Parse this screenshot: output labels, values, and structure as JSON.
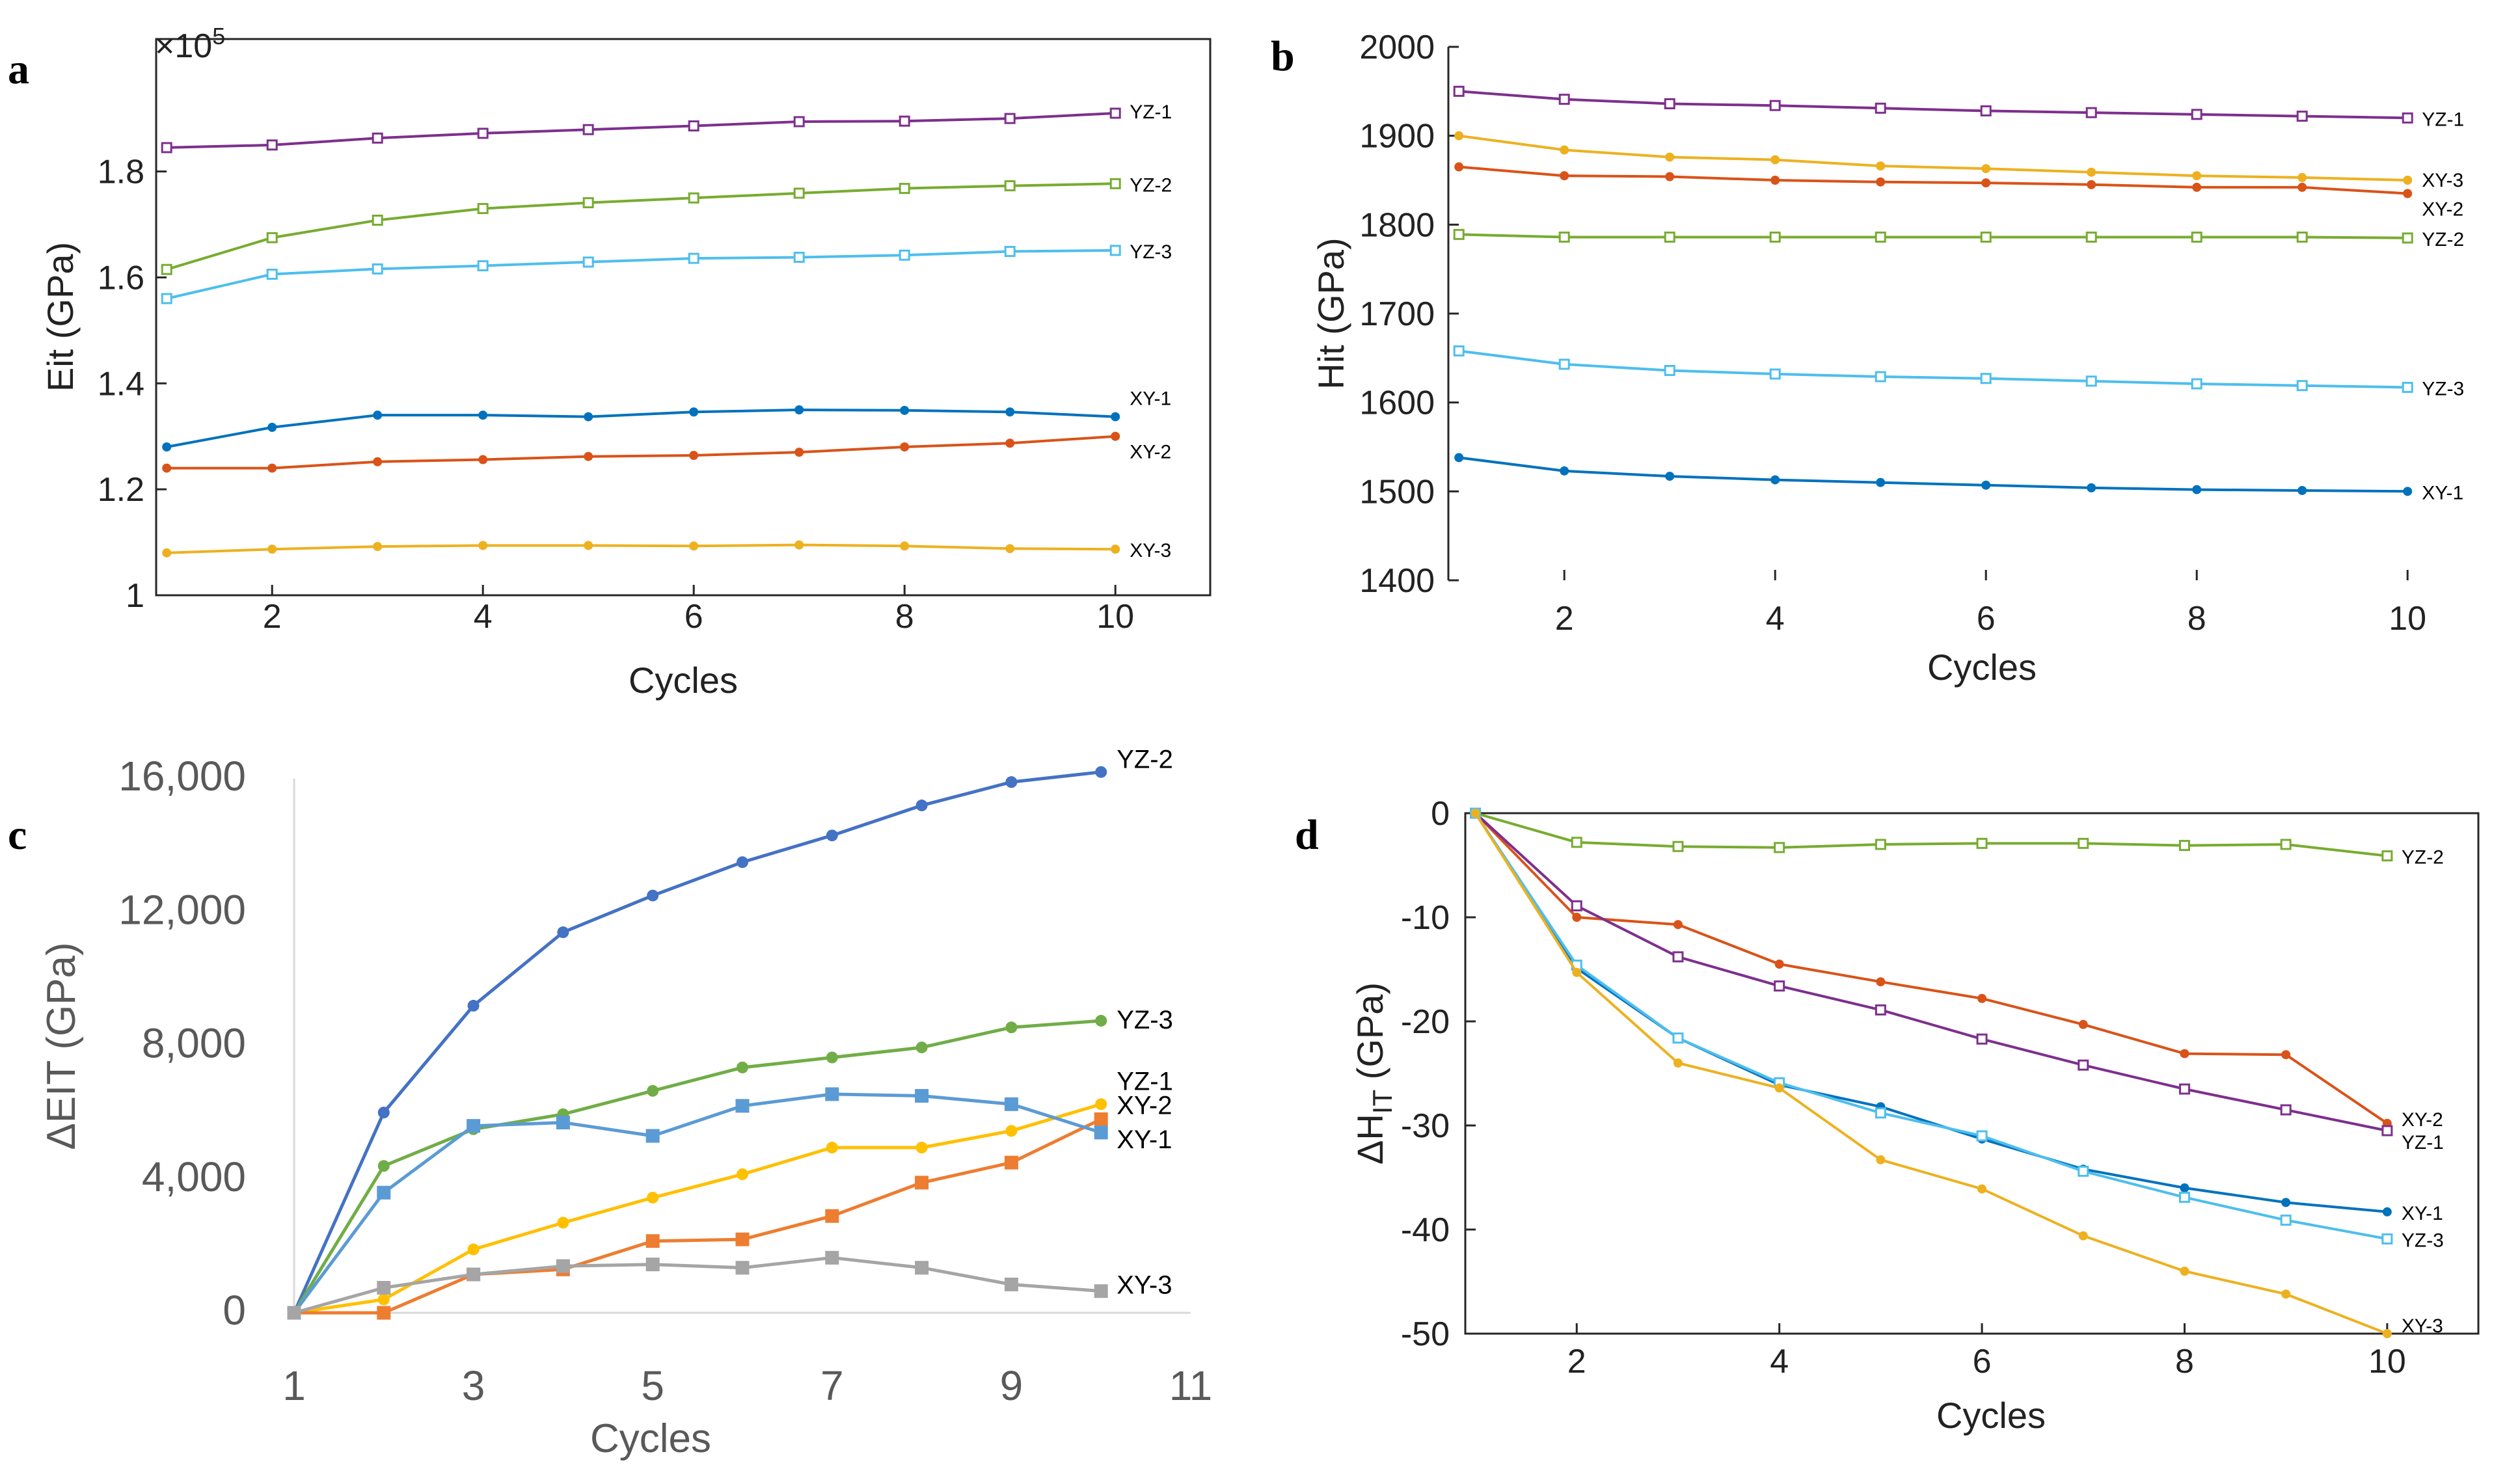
{
  "panels": [
    {
      "letter": "a",
      "chart_data": {
        "type": "line",
        "marker": "mixed",
        "x": [
          1,
          2,
          3,
          4,
          5,
          6,
          7,
          8,
          9,
          10
        ],
        "xlabel": "Cycles",
        "ylabel": "Eit (GPa)",
        "exponent_label": "×10",
        "exponent_power": "5",
        "xlim": [
          0.9,
          10.9
        ],
        "ylim": [
          1,
          2.05
        ],
        "xticks": [
          2,
          4,
          6,
          8,
          10
        ],
        "xtick_labels": [
          "2",
          "4",
          "6",
          "8",
          "10"
        ],
        "yticks": [
          1,
          1.2,
          1.4,
          1.6,
          1.8
        ],
        "ytick_labels": [
          "1",
          "1.2",
          "1.4",
          "1.6",
          "1.8"
        ],
        "series": [
          {
            "name": "YZ-1",
            "color": "#7E2F8E",
            "marker": "square",
            "values": [
              1.845,
              1.85,
              1.863,
              1.872,
              1.879,
              1.886,
              1.894,
              1.895,
              1.9,
              1.91
            ]
          },
          {
            "name": "YZ-2",
            "color": "#77AC30",
            "marker": "square",
            "values": [
              1.615,
              1.675,
              1.708,
              1.73,
              1.741,
              1.75,
              1.759,
              1.768,
              1.773,
              1.777
            ]
          },
          {
            "name": "YZ-3",
            "color": "#4DBEEE",
            "marker": "square",
            "values": [
              1.56,
              1.606,
              1.616,
              1.622,
              1.629,
              1.636,
              1.638,
              1.642,
              1.649,
              1.651
            ]
          },
          {
            "name": "XY-1",
            "color": "#0072BD",
            "marker": "circle",
            "values": [
              1.28,
              1.317,
              1.34,
              1.34,
              1.337,
              1.346,
              1.35,
              1.349,
              1.346,
              1.337
            ]
          },
          {
            "name": "XY-2",
            "color": "#D95319",
            "marker": "circle",
            "values": [
              1.24,
              1.24,
              1.252,
              1.256,
              1.262,
              1.264,
              1.27,
              1.28,
              1.287,
              1.3
            ]
          },
          {
            "name": "XY-3",
            "color": "#EDB120",
            "marker": "circle",
            "values": [
              1.08,
              1.087,
              1.092,
              1.094,
              1.094,
              1.093,
              1.095,
              1.093,
              1.088,
              1.087
            ]
          }
        ]
      }
    },
    {
      "letter": "b",
      "chart_data": {
        "type": "line",
        "x": [
          1,
          2,
          3,
          4,
          5,
          6,
          7,
          8,
          9,
          10
        ],
        "xlabel": "Cycles",
        "ylabel": "Hit (GPa)",
        "xlim": [
          0.9,
          10.9
        ],
        "ylim": [
          1400,
          2000
        ],
        "xticks": [
          2,
          4,
          6,
          8,
          10
        ],
        "xtick_labels": [
          "2",
          "4",
          "6",
          "8",
          "10"
        ],
        "yticks": [
          1400,
          1500,
          1600,
          1700,
          1800,
          1900,
          2000
        ],
        "ytick_labels": [
          "1400",
          "1500",
          "1600",
          "1700",
          "1800",
          "1900",
          "2000"
        ],
        "series": [
          {
            "name": "YZ-1",
            "color": "#7E2F8E",
            "marker": "square",
            "values": [
              1950,
              1941,
              1936,
              1934,
              1931,
              1928,
              1926,
              1924,
              1922,
              1920
            ]
          },
          {
            "name": "XY-3",
            "color": "#EDB120",
            "marker": "circle",
            "values": [
              1900,
              1884,
              1876,
              1873,
              1866,
              1863,
              1859,
              1855,
              1853,
              1850
            ]
          },
          {
            "name": "XY-2",
            "color": "#D95319",
            "marker": "circle",
            "values": [
              1865,
              1855,
              1854,
              1850,
              1848,
              1847,
              1845,
              1842,
              1842,
              1835
            ]
          },
          {
            "name": "YZ-2",
            "color": "#77AC30",
            "marker": "square",
            "values": [
              1789,
              1786,
              1786,
              1786,
              1786,
              1786,
              1786,
              1786,
              1786,
              1785
            ]
          },
          {
            "name": "YZ-3",
            "color": "#4DBEEE",
            "marker": "square",
            "values": [
              1658,
              1643,
              1636,
              1632,
              1629,
              1627,
              1624,
              1621,
              1619,
              1617
            ]
          },
          {
            "name": "XY-1",
            "color": "#0072BD",
            "marker": "circle",
            "values": [
              1538,
              1523,
              1517,
              1513,
              1510,
              1507,
              1504,
              1502,
              1501,
              1500
            ]
          }
        ],
        "label_order": [
          "YZ-1",
          "XY-3",
          "XY-2",
          "YZ-2",
          "YZ-3",
          "XY-1"
        ]
      }
    },
    {
      "letter": "c",
      "chart_data": {
        "type": "line",
        "x": [
          1,
          2,
          3,
          4,
          5,
          6,
          7,
          8,
          9,
          10
        ],
        "xlabel": "Cycles",
        "ylabel": "ΔEIT (GPa)",
        "xlim": [
          1,
          11
        ],
        "ylim": [
          0,
          16000
        ],
        "xticks": [
          1,
          3,
          5,
          7,
          9,
          11
        ],
        "xtick_labels": [
          "1",
          "3",
          "5",
          "7",
          "9",
          "11"
        ],
        "yticks": [
          0,
          4000,
          8000,
          12000,
          16000
        ],
        "ytick_labels": [
          "0",
          "4,000",
          "8,000",
          "12,000",
          "16,000"
        ],
        "series": [
          {
            "name": "YZ-2",
            "color": "#4472C4",
            "marker": "circle",
            "values": [
              0,
              6000,
              9200,
              11400,
              12500,
              13500,
              14300,
              15200,
              15900,
              16200
            ]
          },
          {
            "name": "YZ-3",
            "color": "#70AD47",
            "marker": "circle",
            "values": [
              0,
              4400,
              5500,
              5950,
              6650,
              7350,
              7650,
              7950,
              8550,
              8750
            ]
          },
          {
            "name": "YZ-1",
            "color": "#FFC000",
            "marker": "circle",
            "values": [
              0,
              400,
              1900,
              2700,
              3450,
              4150,
              4950,
              4950,
              5450,
              6250
            ]
          },
          {
            "name": "XY-2",
            "color": "#ED7D31",
            "marker": "square",
            "values": [
              0,
              0,
              1150,
              1300,
              2150,
              2200,
              2900,
              3900,
              4500,
              5800
            ]
          },
          {
            "name": "XY-1",
            "color": "#5B9BD5",
            "marker": "square",
            "values": [
              0,
              3600,
              5600,
              5700,
              5300,
              6200,
              6550,
              6500,
              6250,
              5400
            ]
          },
          {
            "name": "XY-3",
            "color": "#A5A5A5",
            "marker": "square",
            "values": [
              0,
              750,
              1150,
              1400,
              1450,
              1350,
              1650,
              1350,
              850,
              650
            ]
          }
        ]
      }
    },
    {
      "letter": "d",
      "chart_data": {
        "type": "line",
        "x": [
          1,
          2,
          3,
          4,
          5,
          6,
          7,
          8,
          9,
          10
        ],
        "xlabel": "Cycles",
        "ylabel_prefix": "ΔH",
        "ylabel_sub": "IT",
        "ylabel_suffix": " (GPa)",
        "xlim": [
          0.9,
          10.9
        ],
        "ylim": [
          -50,
          0
        ],
        "xticks": [
          2,
          4,
          6,
          8,
          10
        ],
        "xtick_labels": [
          "2",
          "4",
          "6",
          "8",
          "10"
        ],
        "yticks": [
          0,
          -10,
          -20,
          -30,
          -40,
          -50
        ],
        "ytick_labels": [
          "0",
          "-10",
          "-20",
          "-30",
          "-40",
          "-50"
        ],
        "series": [
          {
            "name": "YZ-2",
            "color": "#77AC30",
            "marker": "square",
            "values": [
              0,
              -2.8,
              -3.2,
              -3.3,
              -3.0,
              -2.9,
              -2.9,
              -3.1,
              -3.0,
              -4.1
            ]
          },
          {
            "name": "XY-2",
            "color": "#D95319",
            "marker": "circle",
            "values": [
              0,
              -10,
              -10.7,
              -14.5,
              -16.2,
              -17.8,
              -20.3,
              -23.1,
              -23.2,
              -29.8
            ]
          },
          {
            "name": "YZ-1",
            "color": "#7E2F8E",
            "marker": "square",
            "values": [
              0,
              -8.9,
              -13.8,
              -16.6,
              -18.9,
              -21.7,
              -24.2,
              -26.5,
              -28.5,
              -30.5
            ]
          },
          {
            "name": "XY-1",
            "color": "#0072BD",
            "marker": "circle",
            "values": [
              0,
              -14.9,
              -21.6,
              -26.1,
              -28.2,
              -31.3,
              -34.2,
              -36.0,
              -37.4,
              -38.3
            ]
          },
          {
            "name": "YZ-3",
            "color": "#4DBEEE",
            "marker": "square",
            "values": [
              0,
              -14.6,
              -21.6,
              -25.9,
              -28.8,
              -31.0,
              -34.4,
              -36.9,
              -39.1,
              -40.9
            ]
          },
          {
            "name": "XY-3",
            "color": "#EDB120",
            "marker": "circle",
            "values": [
              0,
              -15.3,
              -24.0,
              -26.4,
              -33.3,
              -36.1,
              -40.6,
              -44.0,
              -46.2,
              -50.0
            ]
          }
        ]
      }
    }
  ]
}
